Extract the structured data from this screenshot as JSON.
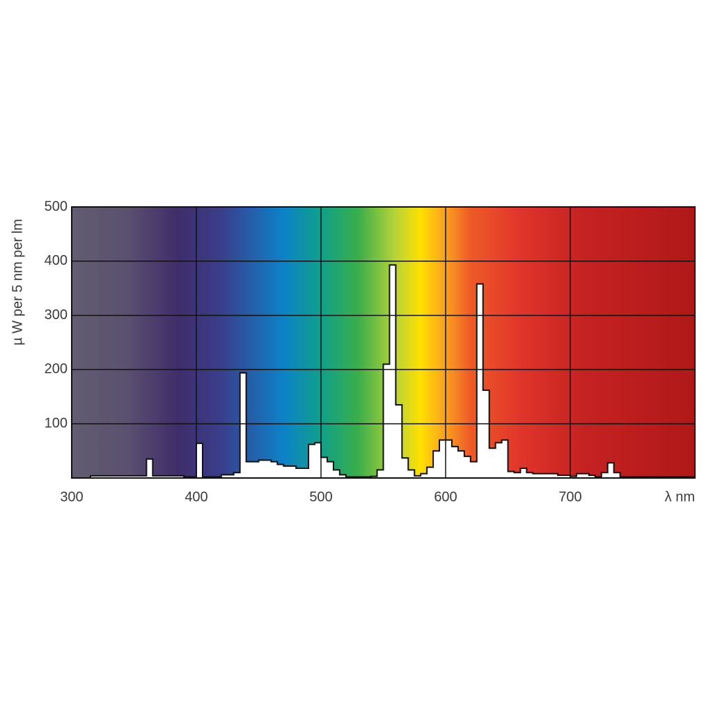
{
  "chart_data": {
    "type": "histogram",
    "ylabel": "µ W per 5 nm per lm",
    "xlabel": "λ nm",
    "xlim": [
      300,
      800
    ],
    "xticks": [
      300,
      400,
      500,
      600,
      700
    ],
    "ylim": [
      0,
      500
    ],
    "yticks": [
      100,
      200,
      300,
      400,
      500
    ],
    "grid": true,
    "color": "#ffffff",
    "bins": [
      315,
      320,
      325,
      330,
      335,
      340,
      345,
      350,
      355,
      360,
      365,
      370,
      375,
      380,
      385,
      390,
      395,
      400,
      405,
      410,
      415,
      420,
      425,
      430,
      435,
      440,
      445,
      450,
      455,
      460,
      465,
      470,
      475,
      480,
      485,
      490,
      495,
      500,
      505,
      510,
      515,
      520,
      525,
      530,
      535,
      540,
      545,
      550,
      555,
      560,
      565,
      570,
      575,
      580,
      585,
      590,
      595,
      600,
      605,
      610,
      615,
      620,
      625,
      630,
      635,
      640,
      645,
      650,
      655,
      660,
      665,
      670,
      675,
      680,
      685,
      690,
      695,
      700,
      705,
      710,
      715,
      720,
      725,
      730,
      735,
      740,
      745,
      750,
      755,
      760,
      765,
      770,
      775,
      780,
      785,
      790,
      795,
      800
    ],
    "values": [
      4,
      4,
      4,
      4,
      4,
      4,
      4,
      4,
      4,
      35,
      4,
      4,
      4,
      4,
      4,
      2,
      2,
      64,
      2,
      2,
      2,
      6,
      6,
      10,
      194,
      30,
      30,
      33,
      33,
      30,
      25,
      22,
      22,
      18,
      18,
      62,
      65,
      38,
      30,
      15,
      6,
      2,
      2,
      2,
      2,
      3,
      15,
      210,
      393,
      135,
      37,
      15,
      4,
      8,
      20,
      50,
      70,
      70,
      58,
      50,
      40,
      30,
      358,
      162,
      55,
      65,
      70,
      12,
      10,
      18,
      10,
      8,
      8,
      8,
      8,
      5,
      5,
      3,
      8,
      8,
      5,
      2,
      10,
      28,
      10,
      2,
      2,
      2,
      2,
      2,
      2,
      2,
      2,
      2,
      2,
      2,
      2
    ]
  }
}
